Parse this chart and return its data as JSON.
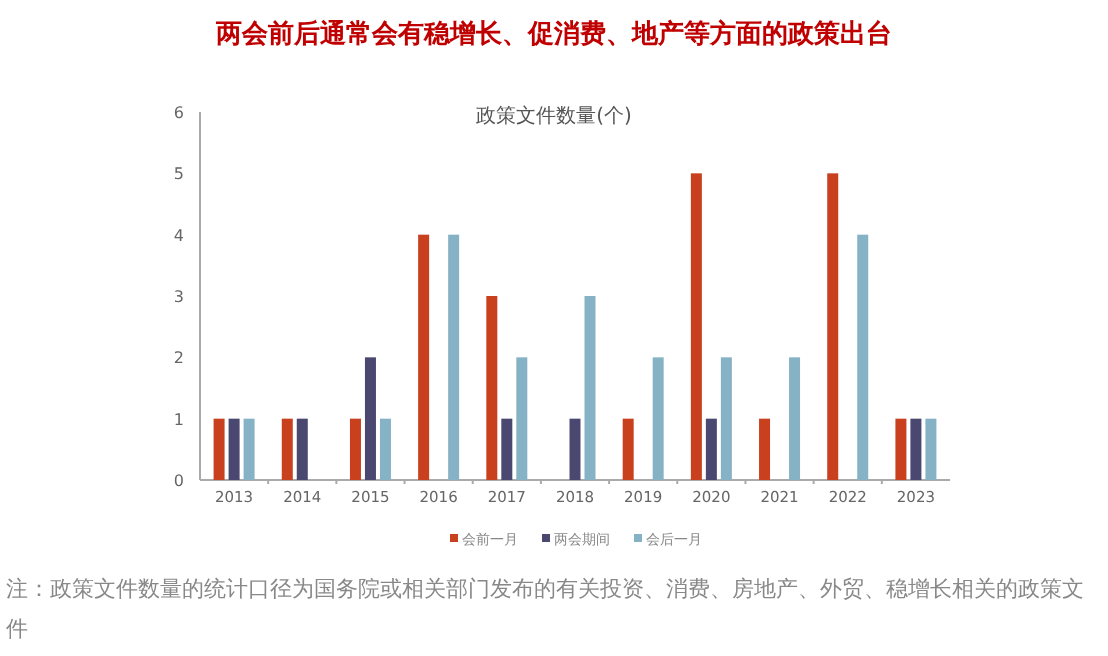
{
  "chart_data": {
    "type": "bar",
    "title": "两会前后通常会有稳增长、促消费、地产等方面的政策出台",
    "subtitle": "政策文件数量(个)",
    "categories": [
      "2013",
      "2014",
      "2015",
      "2016",
      "2017",
      "2018",
      "2019",
      "2020",
      "2021",
      "2022",
      "2023"
    ],
    "series": [
      {
        "name": "会前一月",
        "color": "#c8401e",
        "values": [
          1,
          1,
          1,
          4,
          3,
          0,
          1,
          5,
          1,
          5,
          1
        ]
      },
      {
        "name": "两会期间",
        "color": "#4a4870",
        "values": [
          1,
          1,
          2,
          0,
          1,
          1,
          0,
          1,
          0,
          0,
          1
        ]
      },
      {
        "name": "会后一月",
        "color": "#86b2c6",
        "values": [
          1,
          0,
          1,
          4,
          2,
          3,
          2,
          2,
          2,
          4,
          1
        ]
      }
    ],
    "ylim": [
      0,
      6
    ],
    "yticks": [
      0,
      1,
      2,
      3,
      4,
      5,
      6
    ],
    "grid": false,
    "legend": "bottom",
    "annotations": [
      "注：政策文件数量的统计口径为国务院或相关部门发布的有关投资、消费、房地产、外贸、稳增长相关的政策文件"
    ]
  }
}
